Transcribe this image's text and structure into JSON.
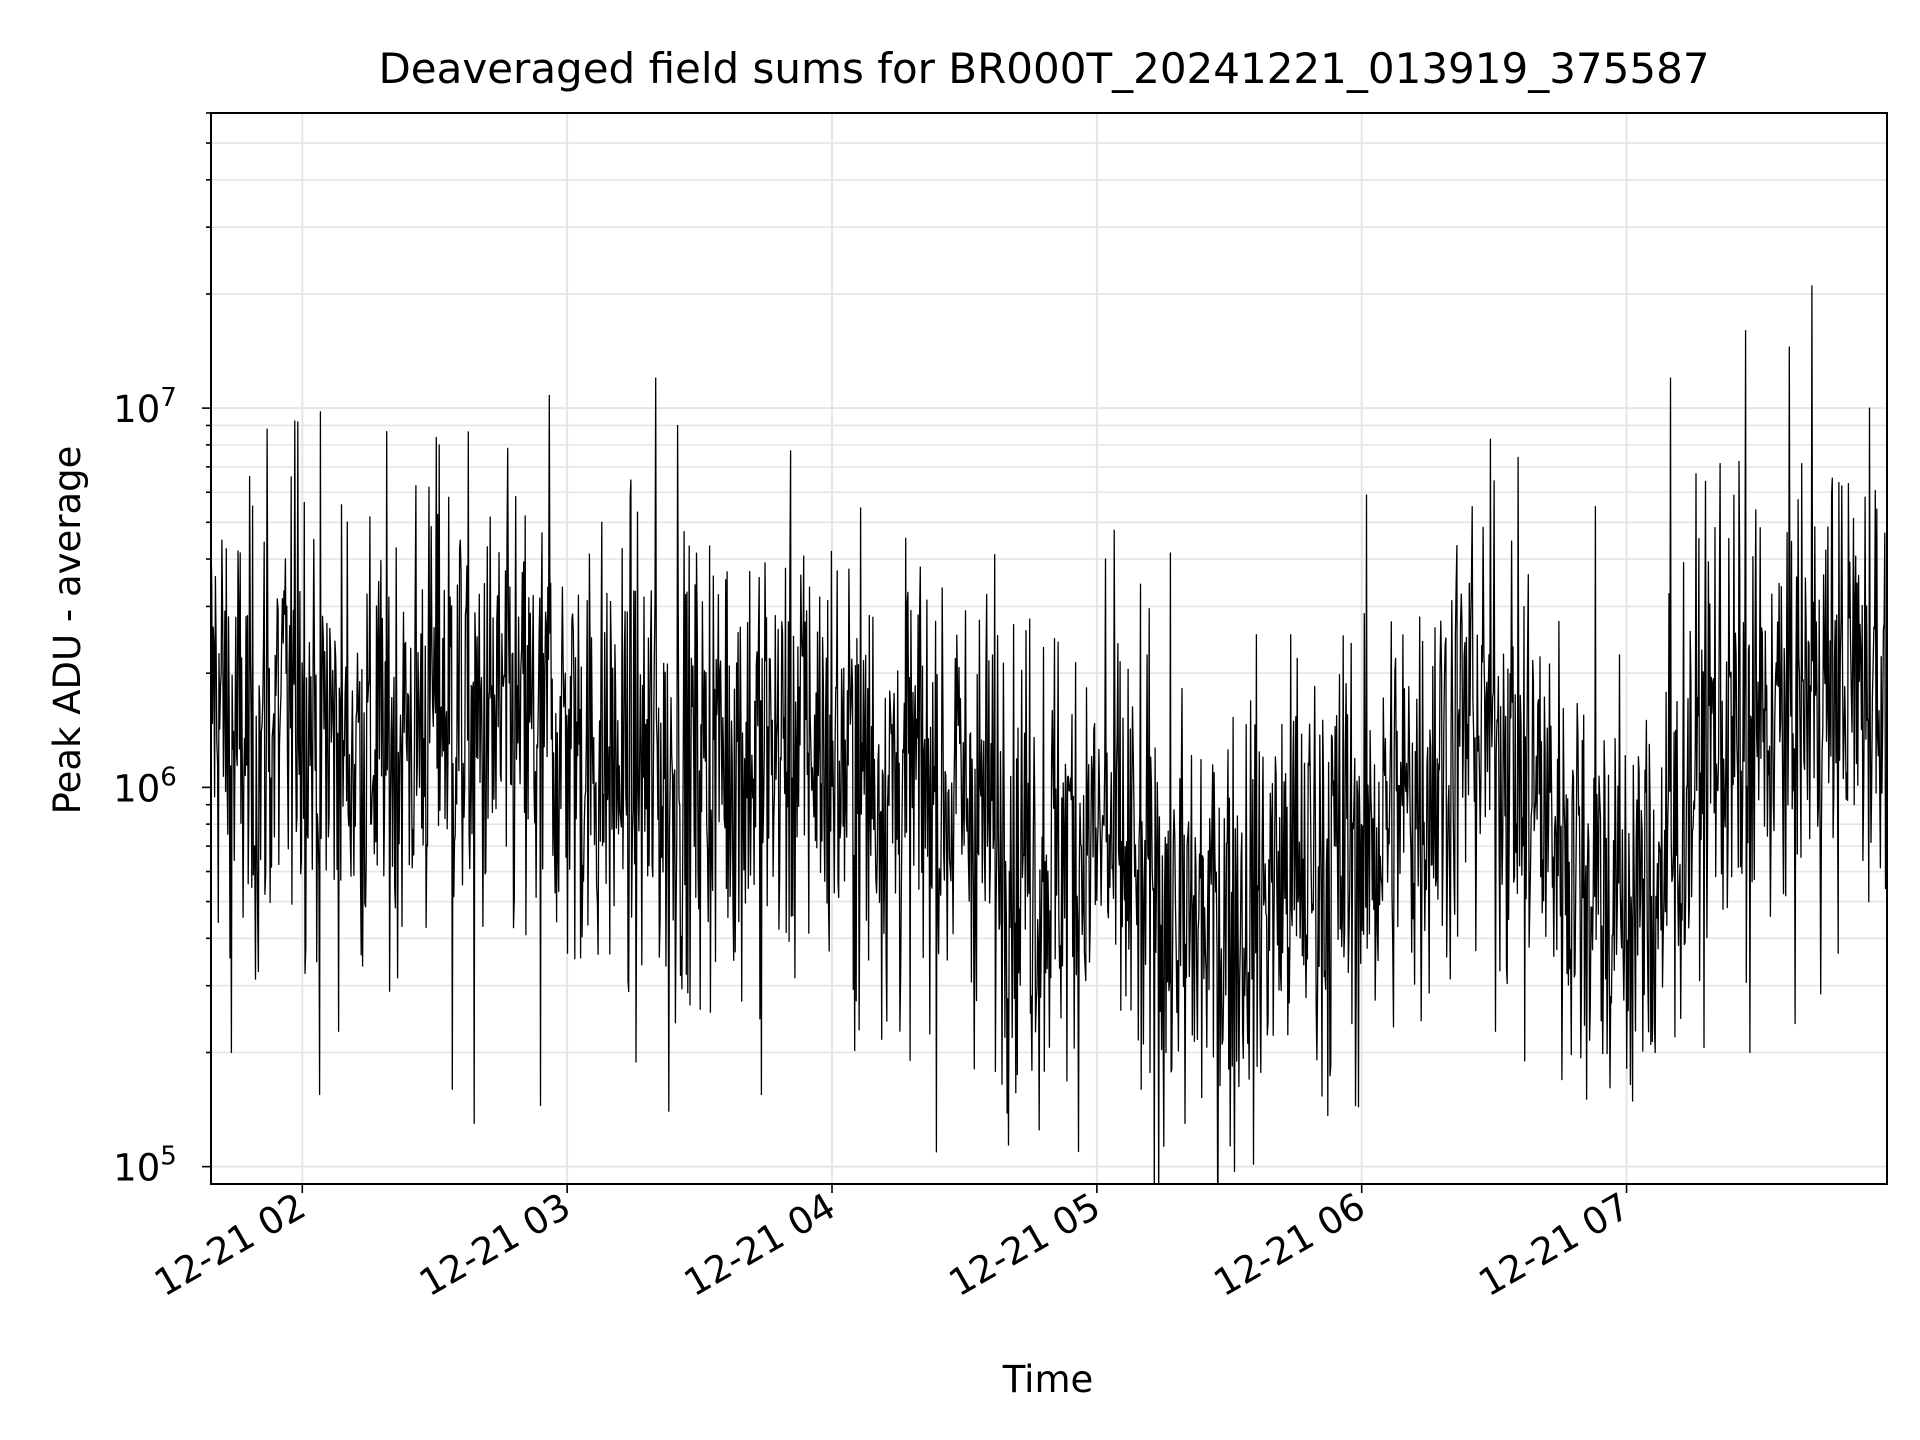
{
  "chart_data": {
    "type": "line",
    "title": "Deaveraged field sums for BR000T_20241221_013919_375587",
    "xlabel": "Time",
    "ylabel": "Peak ADU - average",
    "x_ticks": [
      {
        "label": "12-21 02",
        "value": "2024-12-21T02:00"
      },
      {
        "label": "12-21 03",
        "value": "2024-12-21T03:00"
      },
      {
        "label": "12-21 04",
        "value": "2024-12-21T04:00"
      },
      {
        "label": "12-21 05",
        "value": "2024-12-21T05:00"
      },
      {
        "label": "12-21 06",
        "value": "2024-12-21T06:00"
      },
      {
        "label": "12-21 07",
        "value": "2024-12-21T07:00"
      }
    ],
    "y_ticks": [
      {
        "base": "10",
        "exp": "5",
        "value": 100000
      },
      {
        "base": "10",
        "exp": "6",
        "value": 1000000
      },
      {
        "base": "10",
        "exp": "7",
        "value": 10000000
      }
    ],
    "xlim": [
      "2024-12-21T01:39:19",
      "2024-12-21T07:59:00"
    ],
    "ylim": [
      90000,
      60000000
    ],
    "yscale": "log",
    "grid": true,
    "line_color": "#000000",
    "grid_color": "#e5e5e5",
    "series": [
      {
        "x": [
          "2024-12-21T01:40",
          "2024-12-21T01:45",
          "2024-12-21T01:50",
          "2024-12-21T01:55",
          "2024-12-21T02:00",
          "2024-12-21T02:05",
          "2024-12-21T02:10",
          "2024-12-21T02:15",
          "2024-12-21T02:20",
          "2024-12-21T02:25",
          "2024-12-21T02:30",
          "2024-12-21T02:35",
          "2024-12-21T02:40",
          "2024-12-21T02:45",
          "2024-12-21T02:50",
          "2024-12-21T02:55",
          "2024-12-21T03:00",
          "2024-12-21T03:05",
          "2024-12-21T03:10",
          "2024-12-21T03:15",
          "2024-12-21T03:20",
          "2024-12-21T03:25",
          "2024-12-21T03:30",
          "2024-12-21T03:35",
          "2024-12-21T03:40",
          "2024-12-21T03:45",
          "2024-12-21T03:50",
          "2024-12-21T03:55",
          "2024-12-21T04:00",
          "2024-12-21T04:05",
          "2024-12-21T04:10",
          "2024-12-21T04:15",
          "2024-12-21T04:20",
          "2024-12-21T04:25",
          "2024-12-21T04:30",
          "2024-12-21T04:35",
          "2024-12-21T04:40",
          "2024-12-21T04:45",
          "2024-12-21T04:50",
          "2024-12-21T04:55",
          "2024-12-21T05:00",
          "2024-12-21T05:05",
          "2024-12-21T05:10",
          "2024-12-21T05:15",
          "2024-12-21T05:20",
          "2024-12-21T05:25",
          "2024-12-21T05:30",
          "2024-12-21T05:35",
          "2024-12-21T05:40",
          "2024-12-21T05:45",
          "2024-12-21T05:50",
          "2024-12-21T05:55",
          "2024-12-21T06:00",
          "2024-12-21T06:05",
          "2024-12-21T06:10",
          "2024-12-21T06:15",
          "2024-12-21T06:20",
          "2024-12-21T06:25",
          "2024-12-21T06:30",
          "2024-12-21T06:35",
          "2024-12-21T06:40",
          "2024-12-21T06:45",
          "2024-12-21T06:50",
          "2024-12-21T06:55",
          "2024-12-21T07:00",
          "2024-12-21T07:05",
          "2024-12-21T07:10",
          "2024-12-21T07:15",
          "2024-12-21T07:20",
          "2024-12-21T07:25",
          "2024-12-21T07:30",
          "2024-12-21T07:35",
          "2024-12-21T07:40",
          "2024-12-21T07:45",
          "2024-12-21T07:50",
          "2024-12-21T07:55"
        ],
        "y": [
          1800000,
          1300000,
          1200000,
          1500000,
          1700000,
          1400000,
          1300000,
          1250000,
          1300000,
          1400000,
          1700000,
          1600000,
          1350000,
          1500000,
          1400000,
          1300000,
          1350000,
          1200000,
          1150000,
          1100000,
          1100000,
          1050000,
          1150000,
          1300000,
          1200000,
          1250000,
          1300000,
          1350000,
          1200000,
          1100000,
          1050000,
          1000000,
          1050000,
          950000,
          950000,
          850000,
          750000,
          700000,
          650000,
          700000,
          700000,
          650000,
          550000,
          480000,
          450000,
          420000,
          450000,
          480000,
          550000,
          600000,
          620000,
          650000,
          700000,
          800000,
          900000,
          1050000,
          1300000,
          1500000,
          1400000,
          1200000,
          950000,
          750000,
          600000,
          520000,
          480000,
          500000,
          700000,
          1100000,
          1500000,
          1300000,
          1400000,
          1500000,
          1700000,
          1800000,
          1900000,
          2000000
        ],
        "spikes": [
          {
            "x": "2024-12-21T01:52",
            "y": 8800000
          },
          {
            "x": "2024-12-21T01:59",
            "y": 9200000
          },
          {
            "x": "2024-12-21T02:31",
            "y": 8000000
          },
          {
            "x": "2024-12-21T02:56",
            "y": 10800000
          },
          {
            "x": "2024-12-21T03:20",
            "y": 12000000
          },
          {
            "x": "2024-12-21T03:25",
            "y": 9000000
          },
          {
            "x": "2024-12-21T05:02",
            "y": 4000000
          },
          {
            "x": "2024-12-21T06:25",
            "y": 5500000
          },
          {
            "x": "2024-12-21T06:53",
            "y": 5500000
          },
          {
            "x": "2024-12-21T07:10",
            "y": 12000000
          },
          {
            "x": "2024-12-21T07:27",
            "y": 16000000
          },
          {
            "x": "2024-12-21T07:42",
            "y": 21000000
          },
          {
            "x": "2024-12-21T07:55",
            "y": 10000000
          }
        ],
        "dips": [
          {
            "x": "2024-12-21T01:44",
            "y": 200000
          },
          {
            "x": "2024-12-21T02:04",
            "y": 155000
          },
          {
            "x": "2024-12-21T02:34",
            "y": 160000
          },
          {
            "x": "2024-12-21T02:39",
            "y": 130000
          },
          {
            "x": "2024-12-21T02:54",
            "y": 145000
          },
          {
            "x": "2024-12-21T03:23",
            "y": 140000
          },
          {
            "x": "2024-12-21T03:44",
            "y": 155000
          },
          {
            "x": "2024-12-21T04:42",
            "y": 175000
          },
          {
            "x": "2024-12-21T04:47",
            "y": 125000
          },
          {
            "x": "2024-12-21T05:10",
            "y": 160000
          },
          {
            "x": "2024-12-21T05:20",
            "y": 130000
          },
          {
            "x": "2024-12-21T06:37",
            "y": 190000
          },
          {
            "x": "2024-12-21T07:11",
            "y": 220000
          },
          {
            "x": "2024-12-21T07:28",
            "y": 200000
          }
        ]
      }
    ]
  }
}
